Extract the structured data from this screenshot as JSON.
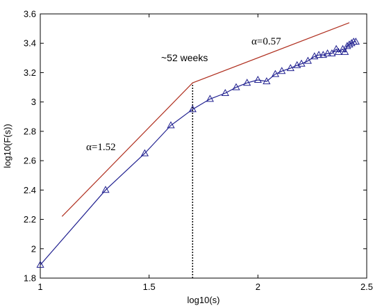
{
  "chart_data": {
    "type": "line",
    "xlabel": "log10(s)",
    "ylabel": "log10(F(s))",
    "xlim": [
      1,
      2.5
    ],
    "ylim": [
      1.8,
      3.6
    ],
    "xticks": [
      1,
      1.5,
      2,
      2.5
    ],
    "yticks": [
      1.8,
      2,
      2.2,
      2.4,
      2.6,
      2.8,
      3,
      3.2,
      3.4,
      3.6
    ],
    "xtick_labels": [
      "1",
      "1.5",
      "2",
      "2.5"
    ],
    "ytick_labels": [
      "1.8",
      "2",
      "2.2",
      "2.4",
      "2.6",
      "2.8",
      "3",
      "3.2",
      "3.4",
      "3.6"
    ],
    "grid": false,
    "series": [
      {
        "color": "#1f1f8f",
        "marker": "triangle",
        "x": [
          1.0,
          1.3,
          1.48,
          1.6,
          1.7,
          1.78,
          1.85,
          1.9,
          1.95,
          2.0,
          2.04,
          2.08,
          2.11,
          2.15,
          2.18,
          2.2,
          2.23,
          2.26,
          2.28,
          2.3,
          2.32,
          2.34,
          2.36,
          2.37,
          2.39,
          2.4,
          2.41,
          2.42,
          2.43,
          2.44,
          2.45
        ],
        "y": [
          1.89,
          2.4,
          2.65,
          2.84,
          2.95,
          3.02,
          3.06,
          3.1,
          3.13,
          3.15,
          3.14,
          3.19,
          3.21,
          3.23,
          3.25,
          3.26,
          3.28,
          3.31,
          3.32,
          3.32,
          3.33,
          3.33,
          3.36,
          3.34,
          3.36,
          3.34,
          3.38,
          3.39,
          3.4,
          3.41,
          3.41
        ]
      },
      {
        "color": "#b03020",
        "marker": "none",
        "x": [
          1.1,
          1.7,
          2.42
        ],
        "y": [
          2.22,
          3.13,
          3.54
        ]
      }
    ],
    "reference_line": {
      "x": 1.7,
      "style": "dotted",
      "color": "#000000"
    },
    "annotations": [
      {
        "text": "α=0.57",
        "x": 1.97,
        "y": 3.5
      },
      {
        "text": "~52 weeks",
        "x": 1.55,
        "y": 3.36
      },
      {
        "text": "α=1.52",
        "x": 1.22,
        "y": 2.74
      }
    ]
  }
}
